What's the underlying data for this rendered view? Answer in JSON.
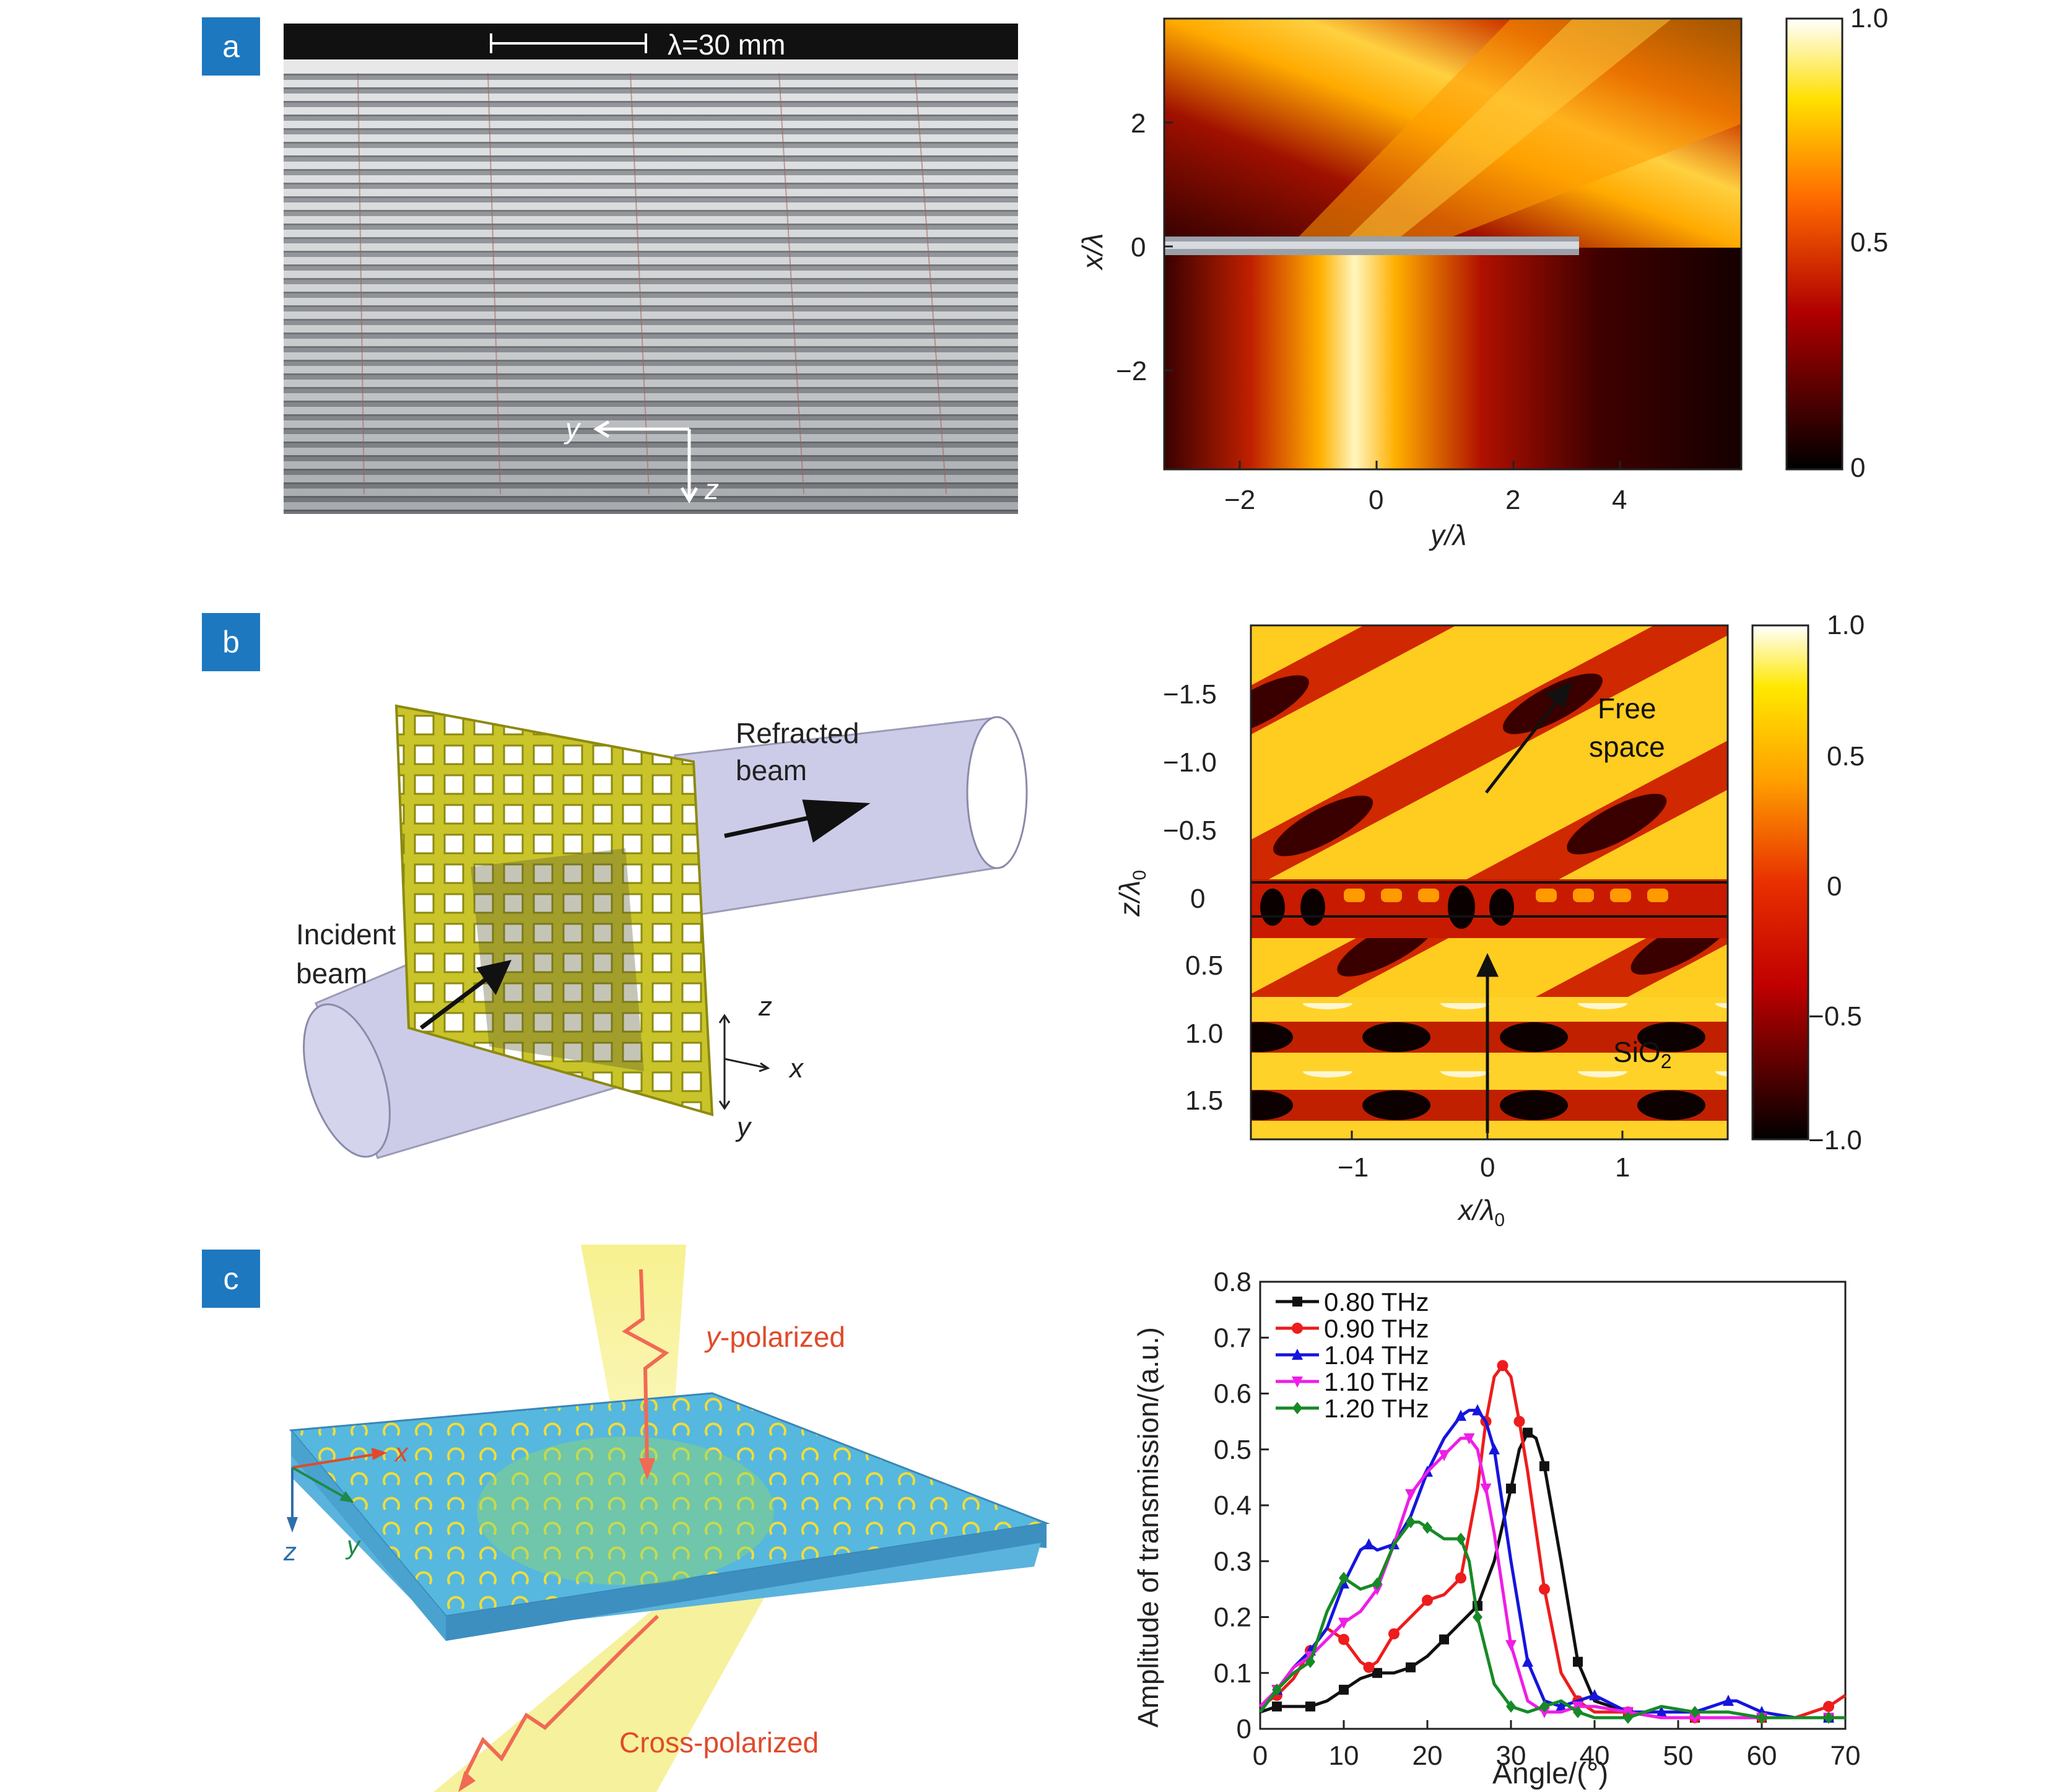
{
  "panels": {
    "a": {
      "label": "a",
      "photo": {
        "scale_bar": "λ=30 mm",
        "axis_y": "y",
        "axis_z": "z"
      },
      "heatmap": {
        "xlabel": "y/λ",
        "ylabel": "x/λ",
        "xticks": [
          "−2",
          "0",
          "2",
          "4"
        ],
        "yticks": [
          "2",
          "0",
          "−2"
        ],
        "colorbar_ticks": [
          "1.0",
          "0.5",
          "0"
        ]
      }
    },
    "b": {
      "label": "b",
      "diagram": {
        "refracted": [
          "Refracted",
          "beam"
        ],
        "incident": [
          "Incident",
          "beam"
        ],
        "axis_z": "z",
        "axis_x": "x",
        "axis_y": "y"
      },
      "heatmap": {
        "xlabel": "x/λ",
        "xlabel_sub": "0",
        "ylabel": "z/λ",
        "ylabel_sub": "0",
        "xticks": [
          "−1",
          "0",
          "1"
        ],
        "yticks": [
          "−1.5",
          "−1.0",
          "−0.5",
          "0",
          "0.5",
          "1.0",
          "1.5"
        ],
        "colorbar_ticks": [
          "1.0",
          "0.5",
          "0",
          "−0.5",
          "−1.0"
        ],
        "annot_free": [
          "Free",
          "space"
        ],
        "annot_sio2": "SiO",
        "annot_sio2_sub": "2"
      }
    },
    "c": {
      "label": "c",
      "diagram": {
        "y_pol_italic": "y",
        "y_pol_rest": "-polarized",
        "cross_pol": "Cross-polarized",
        "axis_x": "x",
        "axis_y": "y",
        "axis_z": "z"
      }
    }
  },
  "chart_data": {
    "type": "line",
    "title": "",
    "xlabel": "Angle/(°)",
    "ylabel": "Amplitude of transmission/(a.u.)",
    "xlim": [
      0,
      70
    ],
    "ylim": [
      0,
      0.8
    ],
    "xticks": [
      0,
      10,
      20,
      30,
      40,
      50,
      60,
      70
    ],
    "yticks": [
      0,
      0.1,
      0.2,
      0.3,
      0.4,
      0.5,
      0.6,
      0.7,
      0.8
    ],
    "legend_position": "top-left",
    "series": [
      {
        "name": "0.80 THz",
        "color": "#111111",
        "marker": "square",
        "x": [
          0,
          2,
          4,
          6,
          8,
          10,
          12,
          14,
          16,
          18,
          20,
          22,
          24,
          26,
          28,
          30,
          31,
          32,
          33,
          34,
          36,
          38,
          40,
          44,
          48,
          52,
          56,
          60,
          64,
          68,
          70
        ],
        "y": [
          0.03,
          0.04,
          0.04,
          0.04,
          0.05,
          0.07,
          0.09,
          0.1,
          0.1,
          0.11,
          0.13,
          0.16,
          0.19,
          0.22,
          0.3,
          0.43,
          0.5,
          0.53,
          0.52,
          0.47,
          0.3,
          0.12,
          0.05,
          0.03,
          0.02,
          0.02,
          0.02,
          0.02,
          0.02,
          0.02,
          0.02
        ]
      },
      {
        "name": "0.90 THz",
        "color": "#ee1c1c",
        "marker": "circle",
        "x": [
          0,
          2,
          4,
          6,
          8,
          10,
          12,
          13,
          14,
          16,
          18,
          20,
          22,
          24,
          26,
          27,
          28,
          29,
          30,
          31,
          32,
          34,
          36,
          38,
          40,
          44,
          48,
          52,
          56,
          60,
          64,
          68,
          70
        ],
        "y": [
          0.04,
          0.06,
          0.09,
          0.14,
          0.18,
          0.16,
          0.12,
          0.11,
          0.12,
          0.17,
          0.2,
          0.23,
          0.24,
          0.27,
          0.43,
          0.55,
          0.63,
          0.65,
          0.63,
          0.55,
          0.46,
          0.25,
          0.1,
          0.05,
          0.03,
          0.03,
          0.02,
          0.02,
          0.02,
          0.02,
          0.02,
          0.04,
          0.06
        ]
      },
      {
        "name": "1.04 THz",
        "color": "#1515dd",
        "marker": "triangle",
        "x": [
          0,
          2,
          4,
          6,
          8,
          10,
          12,
          13,
          14,
          16,
          18,
          20,
          22,
          24,
          25,
          26,
          27,
          28,
          30,
          32,
          34,
          36,
          38,
          40,
          44,
          48,
          52,
          56,
          57,
          60,
          64,
          68,
          70
        ],
        "y": [
          0.03,
          0.07,
          0.11,
          0.14,
          0.18,
          0.26,
          0.32,
          0.33,
          0.32,
          0.33,
          0.38,
          0.46,
          0.52,
          0.56,
          0.57,
          0.57,
          0.55,
          0.5,
          0.3,
          0.12,
          0.05,
          0.04,
          0.05,
          0.06,
          0.03,
          0.03,
          0.03,
          0.05,
          0.05,
          0.03,
          0.02,
          0.02,
          0.02
        ]
      },
      {
        "name": "1.10 THz",
        "color": "#ee1ee6",
        "marker": "triangle-down",
        "x": [
          0,
          2,
          4,
          6,
          8,
          10,
          12,
          14,
          16,
          18,
          20,
          22,
          24,
          25,
          26,
          27,
          28,
          30,
          32,
          34,
          36,
          38,
          40,
          44,
          48,
          52,
          56,
          60,
          64,
          68,
          70
        ],
        "y": [
          0.04,
          0.07,
          0.11,
          0.13,
          0.16,
          0.19,
          0.21,
          0.25,
          0.33,
          0.42,
          0.46,
          0.49,
          0.52,
          0.52,
          0.5,
          0.43,
          0.35,
          0.15,
          0.05,
          0.03,
          0.03,
          0.04,
          0.04,
          0.03,
          0.02,
          0.02,
          0.02,
          0.02,
          0.02,
          0.02,
          0.02
        ]
      },
      {
        "name": "1.20 THz",
        "color": "#168a26",
        "marker": "diamond",
        "x": [
          0,
          2,
          4,
          6,
          8,
          10,
          12,
          14,
          16,
          18,
          19,
          20,
          22,
          24,
          25,
          26,
          28,
          30,
          32,
          34,
          36,
          38,
          40,
          44,
          48,
          52,
          56,
          60,
          64,
          68,
          70
        ],
        "y": [
          0.03,
          0.07,
          0.1,
          0.12,
          0.21,
          0.27,
          0.25,
          0.26,
          0.33,
          0.37,
          0.37,
          0.36,
          0.34,
          0.34,
          0.3,
          0.2,
          0.08,
          0.04,
          0.03,
          0.04,
          0.05,
          0.03,
          0.02,
          0.02,
          0.04,
          0.03,
          0.03,
          0.02,
          0.02,
          0.02,
          0.02
        ]
      }
    ]
  }
}
